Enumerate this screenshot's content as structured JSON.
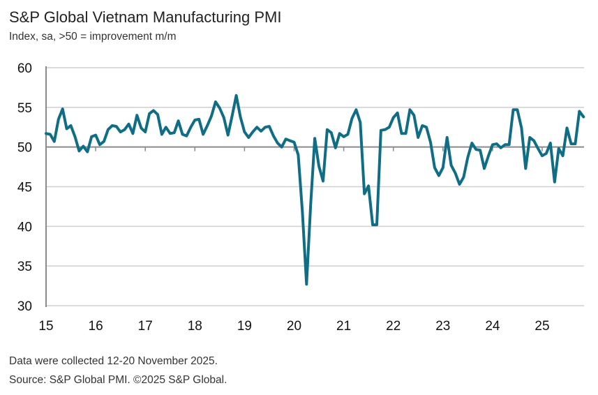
{
  "title": "S&P Global Vietnam Manufacturing PMI",
  "subtitle": "Index, sa, >50 = improvement m/m",
  "footnote1": "Data were collected 12-20 November 2025.",
  "footnote2": "Source: S&P Global PMI. ©2025 S&P Global.",
  "chart_data": {
    "type": "line",
    "title": "S&P Global Vietnam Manufacturing PMI",
    "subtitle": "Index, sa, >50 = improvement m/m",
    "x_start": "2015-01",
    "x_end": "2025-11",
    "frequency": "monthly",
    "xticks": [
      "15",
      "16",
      "17",
      "18",
      "19",
      "20",
      "21",
      "22",
      "23",
      "24",
      "25"
    ],
    "yticks": [
      30,
      35,
      40,
      45,
      50,
      55,
      60
    ],
    "ylim": [
      30,
      60
    ],
    "grid": true,
    "line_color": "#0f6e85",
    "values": [
      51.7,
      51.6,
      50.7,
      53.5,
      54.8,
      52.3,
      52.7,
      51.3,
      49.5,
      50.1,
      49.4,
      51.3,
      51.5,
      50.3,
      50.7,
      52.2,
      52.7,
      52.6,
      51.9,
      52.2,
      52.9,
      51.7,
      54.0,
      52.4,
      51.9,
      54.2,
      54.6,
      54.1,
      51.6,
      52.5,
      51.7,
      51.8,
      53.3,
      51.6,
      51.4,
      52.5,
      53.4,
      53.5,
      51.6,
      52.7,
      53.9,
      55.7,
      54.9,
      53.7,
      51.5,
      53.9,
      56.5,
      53.8,
      51.9,
      51.2,
      51.9,
      52.5,
      52.0,
      52.5,
      52.6,
      51.4,
      50.5,
      50.0,
      51.0,
      50.8,
      50.6,
      49.0,
      41.9,
      32.7,
      42.7,
      51.1,
      47.6,
      45.7,
      52.2,
      51.8,
      49.9,
      51.7,
      51.3,
      51.6,
      53.6,
      54.7,
      53.1,
      44.1,
      45.1,
      40.2,
      40.2,
      52.1,
      52.2,
      52.5,
      53.7,
      54.3,
      51.7,
      51.7,
      54.7,
      54.0,
      51.2,
      52.7,
      52.5,
      50.6,
      47.4,
      46.4,
      47.4,
      51.2,
      47.7,
      46.7,
      45.3,
      46.2,
      48.7,
      50.5,
      49.7,
      49.6,
      47.3,
      48.9,
      50.3,
      50.4,
      49.9,
      50.3,
      50.3,
      54.7,
      54.7,
      52.4,
      47.3,
      51.2,
      50.8,
      49.8,
      48.9,
      49.2,
      50.5,
      45.6,
      49.8,
      48.9,
      52.4,
      50.4,
      50.4,
      54.5,
      53.8
    ]
  }
}
